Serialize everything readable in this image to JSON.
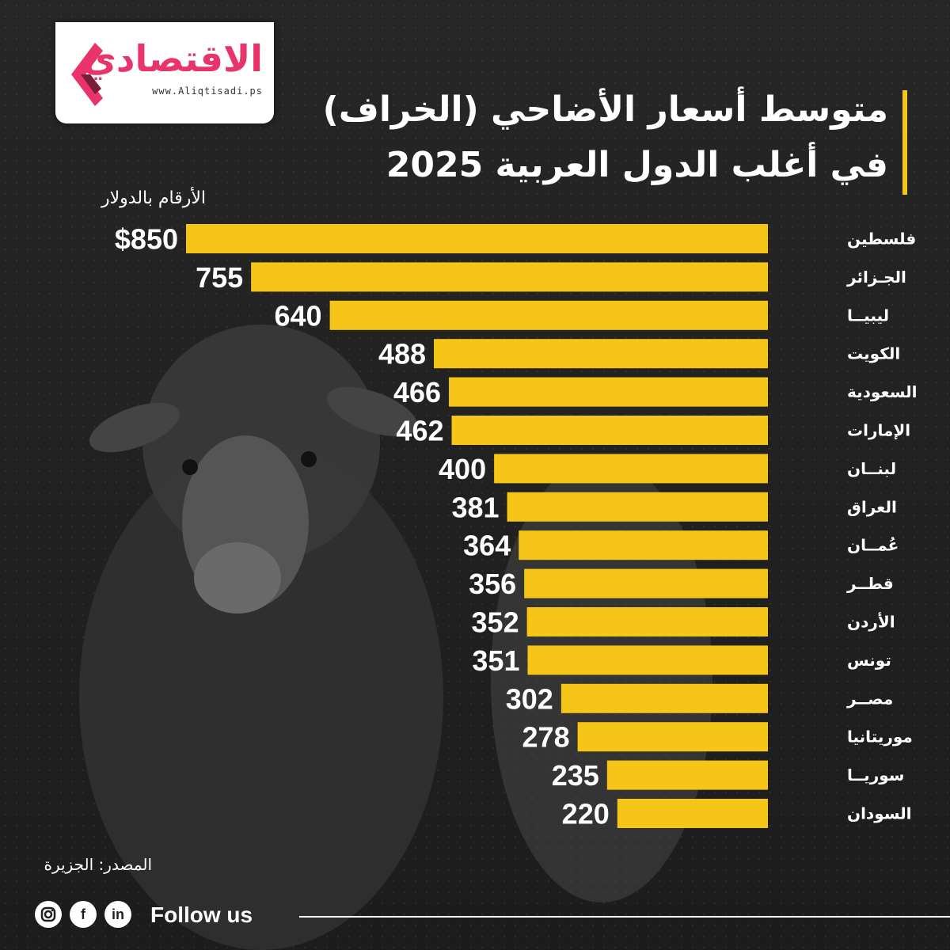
{
  "brand": {
    "name": "الاقتصادي",
    "url": "www.Aliqtisadi.ps",
    "accent_color": "#e8336b"
  },
  "title": {
    "line1": "متوسط أسعار الأضاحي (الخراف)",
    "line2": "في أغلب الدول العربية 2025"
  },
  "unit_note": "الأرقام بالدولار",
  "source": "المصدر: الجزيرة",
  "footer": {
    "follow_label": "Follow us",
    "social_icons": [
      "instagram-icon",
      "facebook-icon",
      "linkedin-icon"
    ]
  },
  "colors": {
    "bar": "#f5c518",
    "background": "#1f1f1f",
    "title_accent": "#f5c518"
  },
  "chart_data": {
    "type": "bar",
    "orientation": "horizontal",
    "title": "متوسط أسعار الأضاحي (الخراف) في أغلب الدول العربية 2025",
    "unit": "الأرقام بالدولار",
    "value_labels": [
      "$850",
      "755",
      "640",
      "488",
      "466",
      "462",
      "400",
      "381",
      "364",
      "356",
      "352",
      "351",
      "302",
      "278",
      "235",
      "220"
    ],
    "categories": [
      "فلسطين",
      "الجـزائر",
      "ليبيــا",
      "الكويت",
      "السعودية",
      "الإمارات",
      "لبنــان",
      "العراق",
      "عُمــان",
      "قطــر",
      "الأردن",
      "تونس",
      "مصــر",
      "موريتانيا",
      "سوريــا",
      "السودان"
    ],
    "values": [
      850,
      755,
      640,
      488,
      466,
      462,
      400,
      381,
      364,
      356,
      352,
      351,
      302,
      278,
      235,
      220
    ],
    "xlim": [
      0,
      850
    ],
    "grid": false,
    "legend": "none"
  }
}
